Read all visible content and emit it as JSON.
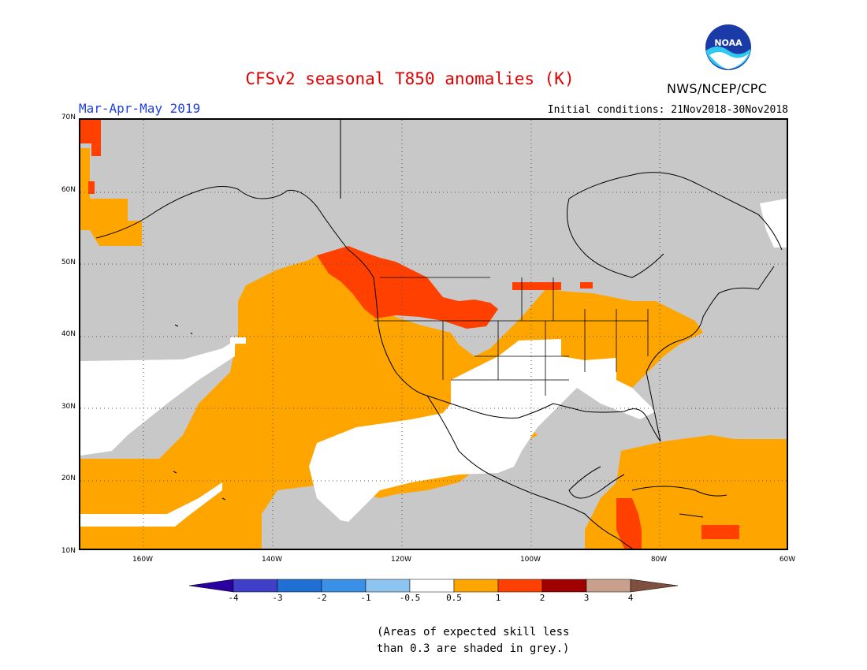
{
  "title": "CFSv2 seasonal T850 anomalies (K)",
  "agency": "NWS/NCEP/CPC",
  "logo_text": "NOAA",
  "season": "Mar-Apr-May 2019",
  "initial_conditions": "Initial conditions: 21Nov2018-30Nov2018",
  "lat_labels": [
    "70N",
    "60N",
    "50N",
    "40N",
    "30N",
    "20N",
    "10N"
  ],
  "lon_labels": [
    "160W",
    "140W",
    "120W",
    "100W",
    "80W",
    "60W"
  ],
  "colorbar": {
    "labels": [
      "-4",
      "-3",
      "-2",
      "-1",
      "-0.5",
      "0.5",
      "1",
      "2",
      "3",
      "4"
    ],
    "colors": [
      "#2a00a0",
      "#3f3fc8",
      "#1f6fd4",
      "#3a90e6",
      "#8ec4f0",
      "#ffffff",
      "#ffa500",
      "#ff4000",
      "#a00000",
      "#c8a08c",
      "#7f5040"
    ]
  },
  "colors": {
    "title": "#e00000",
    "season": "#2040e0",
    "grey_low_skill": "#c8c8c8",
    "near_normal": "#ffffff",
    "above_0_5": "#ffa500",
    "above_1": "#ff4000"
  },
  "note_line1": "(Areas of expected skill less",
  "note_line2": "than 0.3 are shaded in grey.)"
}
